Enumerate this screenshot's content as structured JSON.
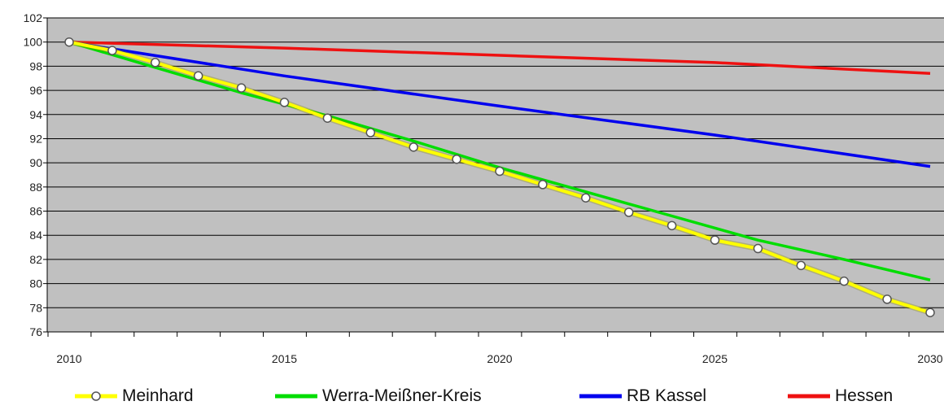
{
  "chart_data": {
    "type": "line",
    "title": "",
    "xlabel": "",
    "ylabel": "",
    "xlim": [
      2010,
      2030
    ],
    "ylim": [
      76,
      102
    ],
    "x_ticks": [
      "2010",
      "2015",
      "2020",
      "2025",
      "2030"
    ],
    "y_ticks": [
      "76",
      "78",
      "80",
      "82",
      "84",
      "86",
      "88",
      "90",
      "92",
      "94",
      "96",
      "98",
      "100",
      "102"
    ],
    "grid": true,
    "plot_background": "#c0c0c0",
    "legend_position": "bottom",
    "series": [
      {
        "name": "Meinhard",
        "color": "#ffff00",
        "marker": "circle",
        "x": [
          2010,
          2011,
          2012,
          2013,
          2014,
          2015,
          2016,
          2017,
          2018,
          2019,
          2020,
          2021,
          2022,
          2023,
          2024,
          2025,
          2026,
          2027,
          2028,
          2029,
          2030
        ],
        "values": [
          100.0,
          99.3,
          98.3,
          97.2,
          96.2,
          95.0,
          93.7,
          92.5,
          91.3,
          90.3,
          89.3,
          88.2,
          87.1,
          85.9,
          84.8,
          83.6,
          82.9,
          81.5,
          80.2,
          78.7,
          77.6
        ]
      },
      {
        "name": "Werra-Meißner-Kreis",
        "color": "#00dd00",
        "x": [
          2010,
          2012,
          2014,
          2016,
          2018,
          2020,
          2022,
          2024,
          2026,
          2028,
          2030
        ],
        "values": [
          100.0,
          97.9,
          95.8,
          93.9,
          91.8,
          89.6,
          87.6,
          85.6,
          83.6,
          82.0,
          80.3
        ]
      },
      {
        "name": "RB Kassel",
        "color": "#0000ee",
        "x": [
          2010,
          2015,
          2020,
          2025,
          2030
        ],
        "values": [
          100.0,
          97.2,
          94.7,
          92.3,
          89.7
        ]
      },
      {
        "name": "Hessen",
        "color": "#ee1111",
        "x": [
          2010,
          2015,
          2020,
          2025,
          2030
        ],
        "values": [
          100.0,
          99.5,
          98.9,
          98.3,
          97.4
        ]
      }
    ]
  }
}
